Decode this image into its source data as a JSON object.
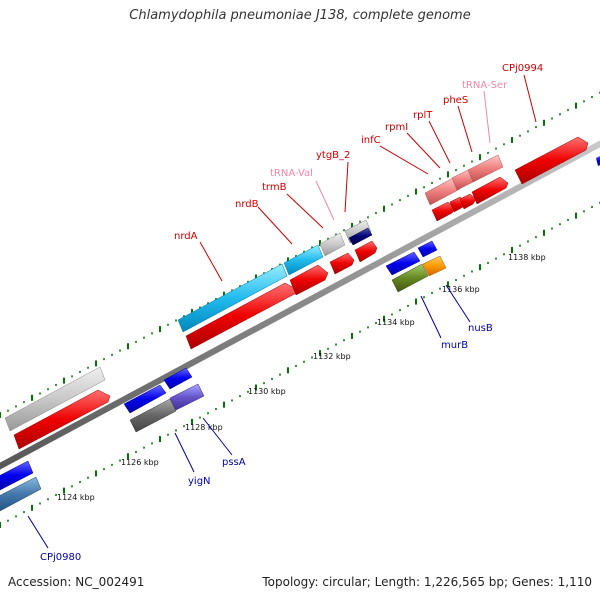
{
  "title": "Chlamydophila pneumoniae J138, complete genome",
  "footer": {
    "accession": "Accession: NC_002491",
    "summary": "Topology: circular; Length: 1,226,565 bp; Genes: 1,110"
  },
  "scale_labels": [
    "1124 kbp",
    "1126 kbp",
    "1128 kbp",
    "1130 kbp",
    "1132 kbp",
    "1134 kbp",
    "1136 kbp",
    "1138 kbp"
  ],
  "gene_labels": {
    "nrdA": "nrdA",
    "nrdB": "nrdB",
    "trmB": "trmB",
    "tRNA_Val": "tRNA-Val",
    "ytgB_2": "ytgB_2",
    "infC": "infC",
    "rpmI": "rpmI",
    "rplT": "rplT",
    "pheS": "pheS",
    "tRNA_Ser": "tRNA-Ser",
    "CPj0994": "CPj0994",
    "CPj0980": "CPj0980",
    "yigN": "yigN",
    "pssA": "pssA",
    "murB": "murB",
    "nusB": "nusB"
  },
  "colors": {
    "forward_label": "#cc0000",
    "rna_label": "#ee88aa",
    "reverse_label": "#0000aa",
    "backbone": "#888888",
    "tick": "#007700"
  }
}
